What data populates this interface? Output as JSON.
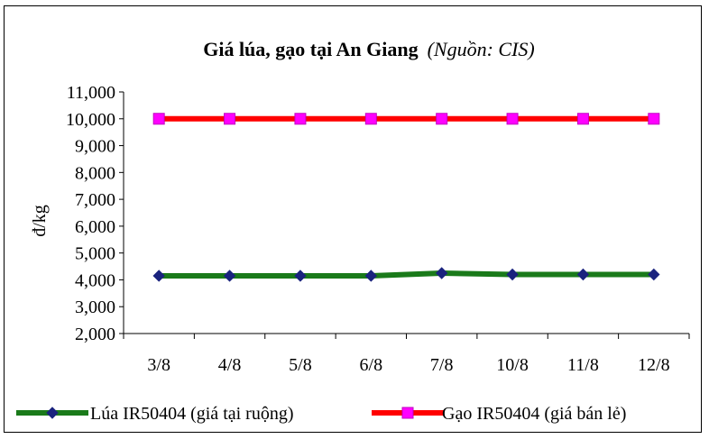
{
  "chart_data": {
    "type": "line",
    "title": "Giá lúa, gạo tại An Giang",
    "subtitle": "(Nguồn: CIS)",
    "ylabel": "đ/kg",
    "xlabel": "",
    "categories": [
      "3/8",
      "4/8",
      "5/8",
      "6/8",
      "7/8",
      "10/8",
      "11/8",
      "12/8"
    ],
    "ylim": [
      2000,
      11000
    ],
    "yticks": [
      2000,
      3000,
      4000,
      5000,
      6000,
      7000,
      8000,
      9000,
      10000,
      11000
    ],
    "ytick_labels": [
      "2,000",
      "3,000",
      "4,000",
      "5,000",
      "6,000",
      "7,000",
      "8,000",
      "9,000",
      "10,000",
      "11,000"
    ],
    "grid": false,
    "legend_position": "bottom",
    "series": [
      {
        "name": "Lúa IR50404 (giá tại ruộng)",
        "color": "#1a7a1a",
        "marker_color": "#1a237e",
        "marker": "diamond",
        "values": [
          4150,
          4150,
          4150,
          4150,
          4250,
          4200,
          4200,
          4200
        ]
      },
      {
        "name": "Gạo IR50404 (giá bán lẻ)",
        "color": "#ff0000",
        "marker_color": "#ff00ff",
        "marker": "square",
        "values": [
          10000,
          10000,
          10000,
          10000,
          10000,
          10000,
          10000,
          10000
        ]
      }
    ]
  }
}
